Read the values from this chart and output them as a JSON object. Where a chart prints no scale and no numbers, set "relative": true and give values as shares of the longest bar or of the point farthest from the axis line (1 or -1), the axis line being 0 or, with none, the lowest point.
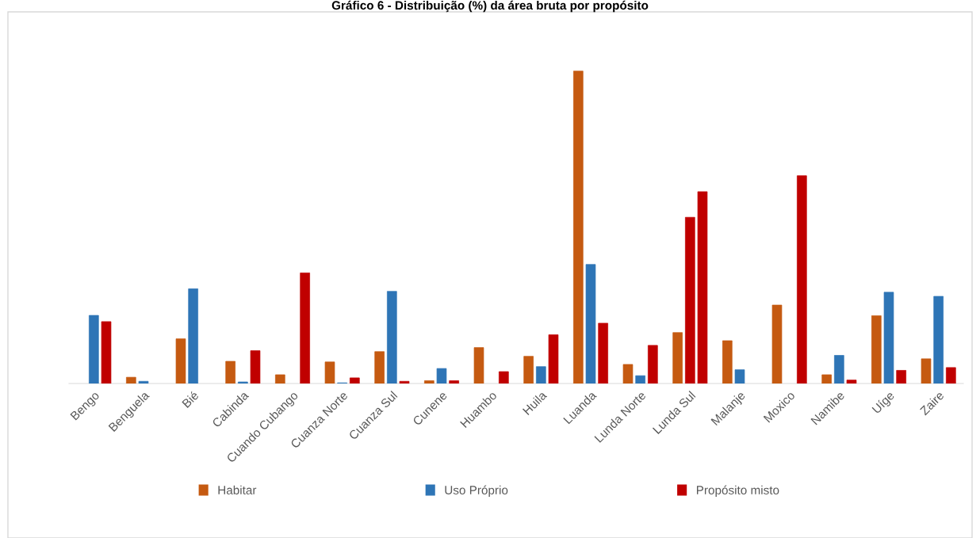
{
  "chart_data": {
    "type": "bar",
    "title": "Gráfico 6 - Distribuição (%) da área bruta por propósito",
    "relative": true,
    "categories": [
      "Bengo",
      "Benguela",
      "Bié",
      "Cabinda",
      "Cuando Cubango",
      "Cuanza Norte",
      "Cuanza Sul",
      "Cunene",
      "Huambo",
      "Huila",
      "Luanda",
      "Lunda Norte",
      "Lunda Sul",
      "Malanje",
      "Moxico",
      "Namibe",
      "Uíge",
      "Zaire"
    ],
    "series": [
      {
        "name": "Habitar",
        "color": "#c55a11",
        "values": [
          null,
          0.02,
          0.143,
          0.071,
          0.028,
          0.069,
          0.102,
          0.009,
          0.115,
          0.087,
          1.0,
          0.061,
          0.163,
          0.137,
          0.251,
          0.028,
          0.217,
          0.079
        ]
      },
      {
        "name": "Uso Próprio",
        "color": "#2e75b6",
        "colors": [
          "#2e75b6",
          "#2e75b6",
          "#2e75b6",
          "#2e75b6",
          "#2e75b6",
          "#2e75b6",
          "#2e75b6",
          "#2e75b6",
          "#2e75b6",
          "#2e75b6",
          "#2e75b6",
          "#2e75b6",
          "#c00000",
          "#2e75b6",
          "#2e75b6",
          "#2e75b6",
          "#2e75b6",
          "#2e75b6"
        ],
        "values": [
          0.218,
          0.007,
          0.303,
          0.005,
          null,
          0.002,
          0.295,
          0.048,
          null,
          0.054,
          0.381,
          0.025,
          0.532,
          0.044,
          null,
          0.09,
          0.292,
          0.279
        ]
      },
      {
        "name": "Propósito misto",
        "color": "#c00000",
        "values": [
          0.198,
          null,
          null,
          0.105,
          0.354,
          0.018,
          0.007,
          0.009,
          0.038,
          0.156,
          0.193,
          0.122,
          0.614,
          null,
          0.665,
          0.011,
          0.042,
          0.051
        ]
      }
    ],
    "legend": "bottom",
    "grid": false
  }
}
